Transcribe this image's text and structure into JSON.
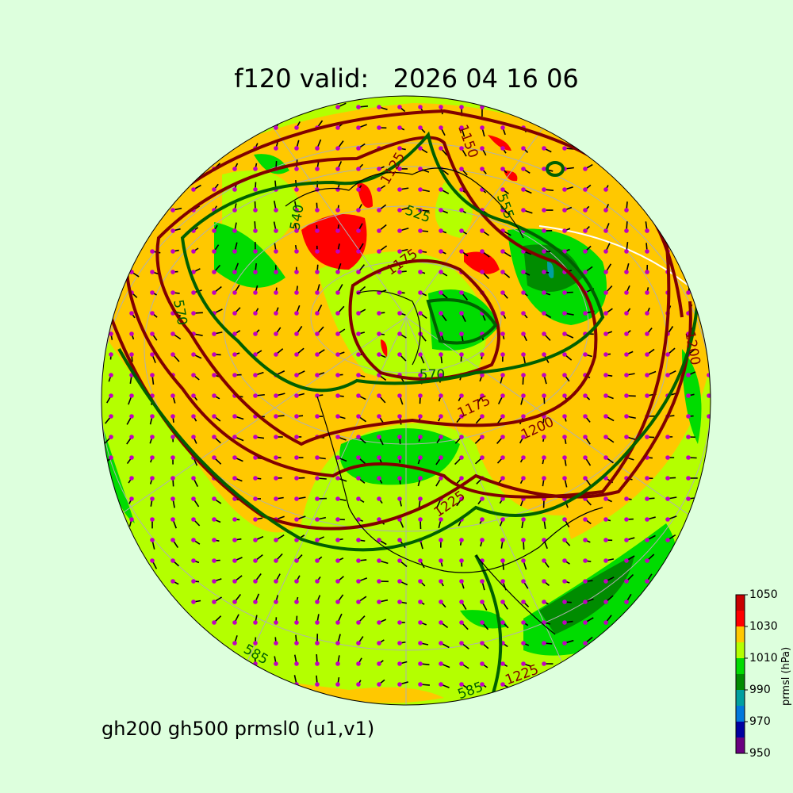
{
  "title": "f120 valid:   2026 04 16 06",
  "subtitle": "gh200 gh500 prmsl0 (u1,v1)",
  "colorbar": {
    "label": "prmsl (hPa)",
    "ticks": [
      "1050",
      "1030",
      "1010",
      "990",
      "970",
      "950"
    ],
    "levels": [
      950,
      960,
      970,
      980,
      990,
      1000,
      1010,
      1020,
      1030,
      1040,
      1050
    ],
    "colors": [
      "#6a0080",
      "#0000a0",
      "#0078dc",
      "#00a0a0",
      "#008c00",
      "#00dc00",
      "#b4ff00",
      "#ffc800",
      "#ff0000",
      "#c80000"
    ]
  },
  "map": {
    "projection": "orthographic",
    "base_color": "#b4ff00",
    "gh200_contour_color": "#800000",
    "gh500_contour_color": "#006000",
    "wind_point_color": "#c000c0",
    "contour_labels": [
      {
        "text": "1150",
        "color": "#800000"
      },
      {
        "text": "1125",
        "color": "#800000"
      },
      {
        "text": "1175",
        "color": "#800000"
      },
      {
        "text": "1200",
        "color": "#800000"
      },
      {
        "text": "1225",
        "color": "#800000"
      },
      {
        "text": "1125",
        "color": "#800000"
      },
      {
        "text": "1175",
        "color": "#800000"
      },
      {
        "text": "1200",
        "color": "#800000"
      },
      {
        "text": "1225",
        "color": "#800000"
      },
      {
        "text": "555",
        "color": "#006000"
      },
      {
        "text": "525",
        "color": "#006000"
      },
      {
        "text": "540",
        "color": "#006000"
      },
      {
        "text": "570",
        "color": "#006000"
      },
      {
        "text": "570",
        "color": "#006000"
      },
      {
        "text": "585",
        "color": "#006000"
      },
      {
        "text": "585",
        "color": "#006000"
      }
    ]
  }
}
